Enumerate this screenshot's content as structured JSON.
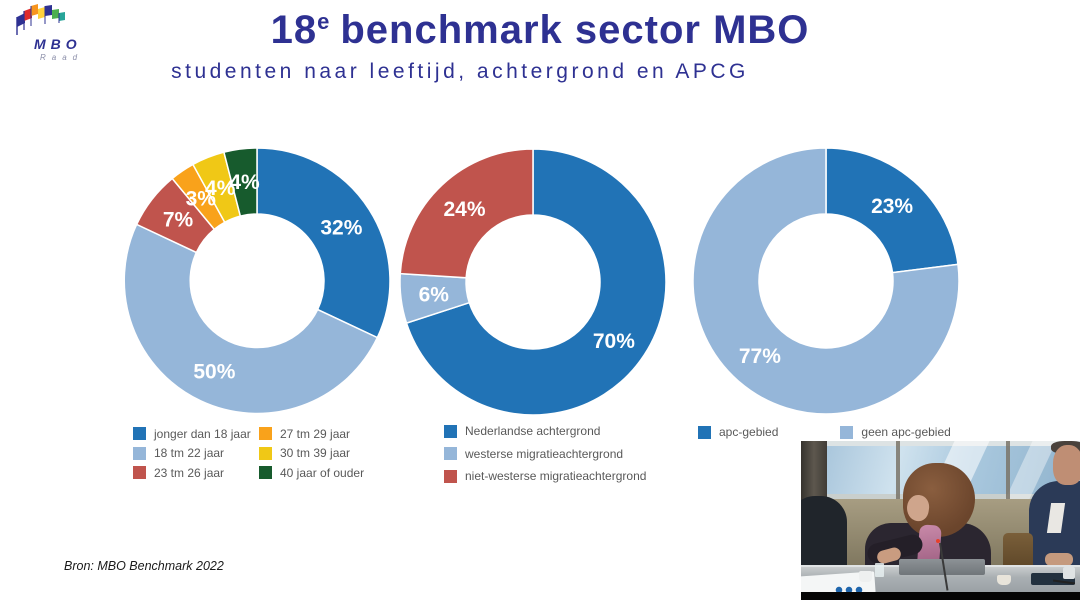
{
  "logo": {
    "main": "MBO",
    "sub": "Raad"
  },
  "header": {
    "title_num": "18",
    "title_sup": "e",
    "title_rest": "benchmark sector MBO",
    "subtitle": "studenten naar leeftijd, achtergrond en APCG",
    "accent_color": "#2E3192"
  },
  "footer": {
    "source": "Bron: MBO Benchmark 2022"
  },
  "chart_data": [
    {
      "type": "pie",
      "donut": true,
      "title": "",
      "labels": [
        "jonger dan 18 jaar",
        "18 tm 22 jaar",
        "23 tm 26 jaar",
        "27 tm 29 jaar",
        "30 tm 39 jaar",
        "40 jaar of ouder"
      ],
      "values": [
        32,
        50,
        7,
        3,
        4,
        4
      ],
      "data_labels": [
        "32%",
        "50%",
        "7%",
        "3%",
        "4%",
        "4%"
      ],
      "colors": [
        "#2173B6",
        "#95B6D9",
        "#C0544D",
        "#F9A21B",
        "#F0C816",
        "#175B2D"
      ],
      "legend_position": "bottom",
      "legend_columns": 2,
      "start_angle_deg": 0,
      "direction": "clockwise"
    },
    {
      "type": "pie",
      "donut": true,
      "title": "",
      "labels": [
        "Nederlandse achtergrond",
        "westerse migratieachtergrond",
        "niet-westerse migratieachtergrond"
      ],
      "values": [
        70,
        6,
        24
      ],
      "data_labels": [
        "70%",
        "6%",
        "24%"
      ],
      "colors": [
        "#2173B6",
        "#95B6D9",
        "#C0544D"
      ],
      "legend_position": "bottom",
      "legend_columns": 1,
      "start_angle_deg": 0,
      "direction": "clockwise"
    },
    {
      "type": "pie",
      "donut": true,
      "title": "",
      "labels": [
        "apc-gebied",
        "geen apc-gebied"
      ],
      "values": [
        23,
        77
      ],
      "data_labels": [
        "23%",
        "77%"
      ],
      "colors": [
        "#2173B6",
        "#95B6D9"
      ],
      "legend_position": "bottom",
      "legend_columns": 2,
      "start_angle_deg": 0,
      "direction": "clockwise"
    }
  ]
}
